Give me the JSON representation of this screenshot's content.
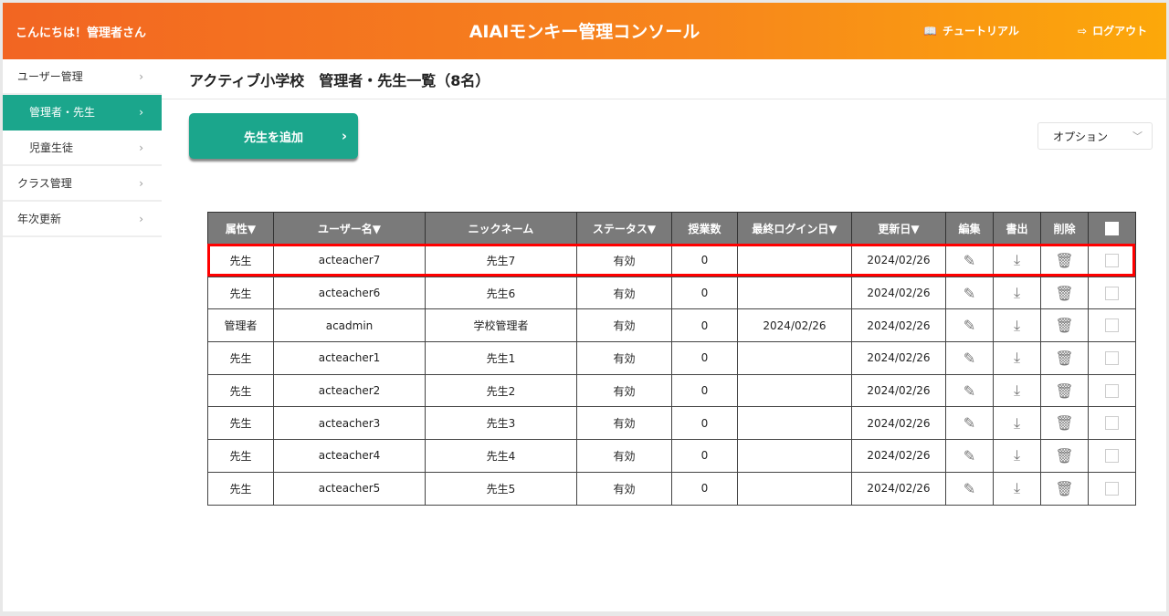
{
  "header": {
    "greeting": "こんにちは！管理者さん",
    "title": "AIAIモンキー管理コンソール",
    "tutorial": "チュートリアル",
    "logout": "ログアウト",
    "gradient_start": "#f26522",
    "gradient_end": "#fca80a"
  },
  "sidebar": {
    "items": [
      {
        "label": "ユーザー管理"
      },
      {
        "label": "管理者・先生",
        "active": true
      },
      {
        "label": "児童生徒"
      },
      {
        "label": "クラス管理"
      },
      {
        "label": "年次更新"
      }
    ]
  },
  "page": {
    "title": "アクティブ小学校　管理者・先生一覧（8名）",
    "add_button": "先生を追加",
    "options": "オプション",
    "accent": "#1ba68c"
  },
  "table": {
    "headers": [
      "属性▼",
      "ユーザー名▼",
      "ニックネーム",
      "ステータス▼",
      "授業数",
      "最終ログイン日▼",
      "更新日▼",
      "編集",
      "書出",
      "削除"
    ],
    "rows": [
      [
        "先生",
        "acteacher7",
        "先生7",
        "有効",
        "0",
        "",
        "2024/02/26"
      ],
      [
        "先生",
        "acteacher6",
        "先生6",
        "有効",
        "0",
        "",
        "2024/02/26"
      ],
      [
        "管理者",
        "acadmin",
        "学校管理者",
        "有効",
        "0",
        "2024/02/26",
        "2024/02/26"
      ],
      [
        "先生",
        "acteacher1",
        "先生1",
        "有効",
        "0",
        "",
        "2024/02/26"
      ],
      [
        "先生",
        "acteacher2",
        "先生2",
        "有効",
        "0",
        "",
        "2024/02/26"
      ],
      [
        "先生",
        "acteacher3",
        "先生3",
        "有効",
        "0",
        "",
        "2024/02/26"
      ],
      [
        "先生",
        "acteacher4",
        "先生4",
        "有効",
        "0",
        "",
        "2024/02/26"
      ],
      [
        "先生",
        "acteacher5",
        "先生5",
        "有効",
        "0",
        "",
        "2024/02/26"
      ]
    ],
    "highlighted_row": 0
  }
}
